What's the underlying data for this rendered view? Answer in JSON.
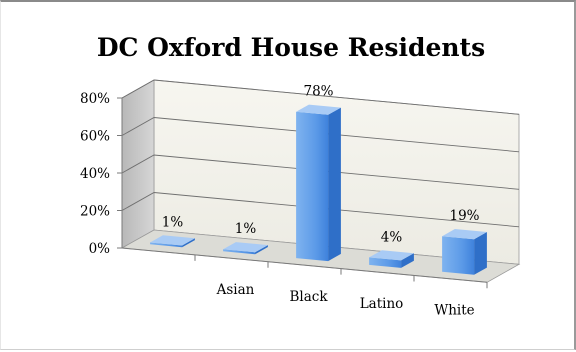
{
  "chart_data": {
    "type": "bar",
    "title": "DC Oxford House Residents",
    "xlabel": "",
    "ylabel": "",
    "ylim": [
      0,
      80
    ],
    "y_ticks": [
      0,
      20,
      40,
      60,
      80
    ],
    "y_tick_labels": [
      "0%",
      "20%",
      "40%",
      "60%",
      "80%"
    ],
    "categories": [
      "",
      "Asian",
      "Black",
      "Latino",
      "White"
    ],
    "values": [
      1,
      1,
      78,
      4,
      19
    ],
    "data_labels": [
      "1%",
      "1%",
      "78%",
      "4%",
      "19%"
    ],
    "grid": true,
    "legend": "none",
    "colors": {
      "bar_front": "#5d9be8",
      "bar_side": "#2f6fc8",
      "bar_top": "#a9cbf5",
      "wall": "#f1efe6",
      "side_wall": "#c4c4c4",
      "floor": "#dcdcd6",
      "grid": "#6f6f6f"
    }
  }
}
